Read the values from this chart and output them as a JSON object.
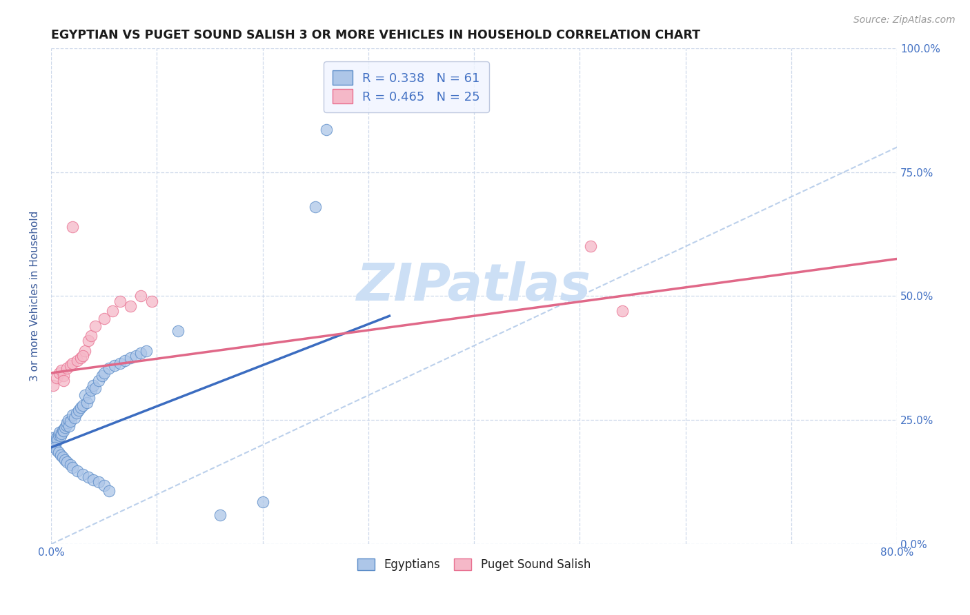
{
  "title": "EGYPTIAN VS PUGET SOUND SALISH 3 OR MORE VEHICLES IN HOUSEHOLD CORRELATION CHART",
  "source_text": "Source: ZipAtlas.com",
  "ylabel": "3 or more Vehicles in Household",
  "xlim": [
    0.0,
    0.8
  ],
  "ylim": [
    0.0,
    1.0
  ],
  "ytick_positions": [
    0.0,
    0.25,
    0.5,
    0.75,
    1.0
  ],
  "ytick_labels": [
    "0.0%",
    "25.0%",
    "50.0%",
    "75.0%",
    "100.0%"
  ],
  "xtick_positions": [
    0.0,
    0.1,
    0.2,
    0.3,
    0.4,
    0.5,
    0.6,
    0.7,
    0.8
  ],
  "blue_R": 0.338,
  "blue_N": 61,
  "pink_R": 0.465,
  "pink_N": 25,
  "blue_color": "#adc6e8",
  "pink_color": "#f5b8c8",
  "blue_edge_color": "#5b8cc8",
  "pink_edge_color": "#e87090",
  "blue_line_color": "#3b6cc0",
  "pink_line_color": "#e06888",
  "diag_line_color": "#b0c8e8",
  "watermark_color": "#ccdff5",
  "background_color": "#ffffff",
  "grid_color": "#c8d4e8",
  "tick_label_color": "#4472c4",
  "axis_label_color": "#3a5a9a",
  "blue_line_x0": 0.0,
  "blue_line_y0": 0.195,
  "blue_line_x1": 0.32,
  "blue_line_y1": 0.46,
  "pink_line_x0": 0.0,
  "pink_line_y0": 0.345,
  "pink_line_x1": 0.8,
  "pink_line_y1": 0.575,
  "blue_scatter_x": [
    0.002,
    0.003,
    0.004,
    0.005,
    0.006,
    0.007,
    0.008,
    0.009,
    0.01,
    0.011,
    0.012,
    0.013,
    0.014,
    0.015,
    0.016,
    0.017,
    0.018,
    0.02,
    0.022,
    0.024,
    0.026,
    0.028,
    0.03,
    0.032,
    0.034,
    0.036,
    0.038,
    0.04,
    0.042,
    0.045,
    0.048,
    0.05,
    0.055,
    0.06,
    0.065,
    0.07,
    0.075,
    0.08,
    0.085,
    0.09,
    0.003,
    0.005,
    0.007,
    0.009,
    0.011,
    0.013,
    0.015,
    0.018,
    0.02,
    0.025,
    0.03,
    0.035,
    0.04,
    0.045,
    0.05,
    0.055,
    0.12,
    0.16,
    0.2,
    0.25,
    0.26
  ],
  "blue_scatter_y": [
    0.215,
    0.205,
    0.2,
    0.215,
    0.21,
    0.22,
    0.225,
    0.218,
    0.222,
    0.23,
    0.228,
    0.235,
    0.24,
    0.245,
    0.25,
    0.238,
    0.248,
    0.26,
    0.255,
    0.265,
    0.27,
    0.275,
    0.28,
    0.3,
    0.285,
    0.295,
    0.31,
    0.32,
    0.315,
    0.33,
    0.34,
    0.345,
    0.355,
    0.36,
    0.365,
    0.37,
    0.375,
    0.38,
    0.385,
    0.39,
    0.195,
    0.19,
    0.185,
    0.18,
    0.175,
    0.17,
    0.165,
    0.16,
    0.155,
    0.148,
    0.14,
    0.135,
    0.13,
    0.125,
    0.118,
    0.108,
    0.43,
    0.058,
    0.085,
    0.68,
    0.835
  ],
  "pink_scatter_x": [
    0.002,
    0.005,
    0.008,
    0.01,
    0.012,
    0.015,
    0.018,
    0.02,
    0.025,
    0.028,
    0.032,
    0.035,
    0.038,
    0.042,
    0.05,
    0.058,
    0.065,
    0.075,
    0.085,
    0.095,
    0.012,
    0.02,
    0.03,
    0.51,
    0.54
  ],
  "pink_scatter_y": [
    0.32,
    0.335,
    0.345,
    0.35,
    0.34,
    0.355,
    0.36,
    0.365,
    0.37,
    0.375,
    0.39,
    0.41,
    0.42,
    0.44,
    0.455,
    0.47,
    0.49,
    0.48,
    0.5,
    0.49,
    0.33,
    0.64,
    0.38,
    0.6,
    0.47
  ],
  "legend_face_color": "#f0f4ff",
  "legend_edge_color": "#b0bcd8"
}
